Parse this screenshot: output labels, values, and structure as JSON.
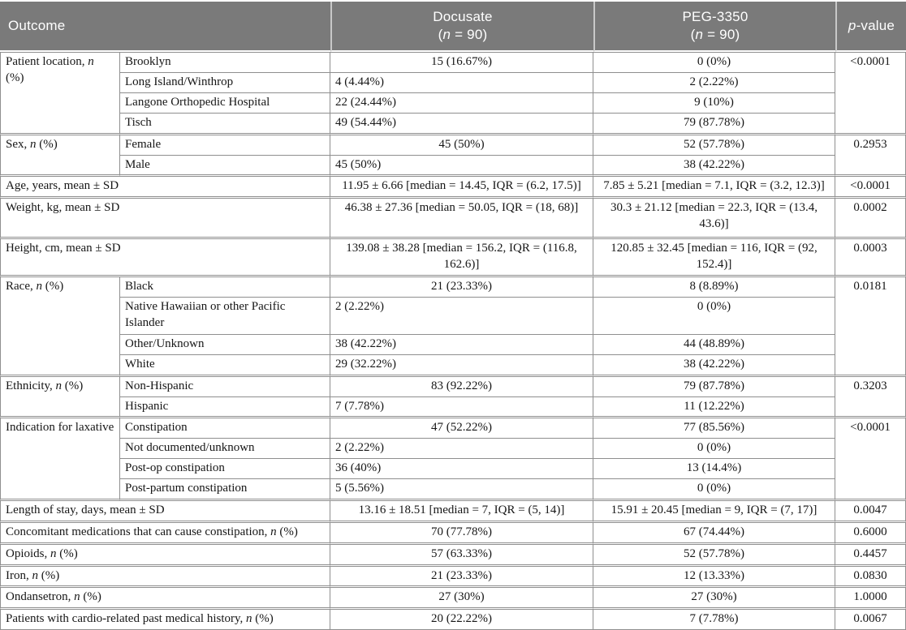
{
  "colors": {
    "header_bg": "#7a7a7a",
    "header_text": "#ffffff",
    "border": "#8f8f8f",
    "header_separator": "#c8c8c8",
    "body_text": "#161616"
  },
  "header": {
    "outcome": "Outcome",
    "docusate_line1": "Docusate",
    "docusate_line2": "(n = 90)",
    "peg_line1": "PEG-3350",
    "peg_line2": "(n = 90)",
    "pvalue": "p-value"
  },
  "groups": [
    {
      "label": "Patient location, n (%)",
      "pvalue": "<0.0001",
      "rows": [
        {
          "sub": "Brooklyn",
          "doc": "15 (16.67%)",
          "peg": "0 (0%)"
        },
        {
          "sub": "Long Island/Winthrop",
          "doc": "4 (4.44%)",
          "peg": "2 (2.22%)"
        },
        {
          "sub": "Langone Orthopedic Hospital",
          "doc": "22 (24.44%)",
          "peg": "9 (10%)"
        },
        {
          "sub": "Tisch",
          "doc": "49 (54.44%)",
          "peg": "79 (87.78%)"
        }
      ]
    },
    {
      "label": "Sex, n (%)",
      "pvalue": "0.2953",
      "rows": [
        {
          "sub": "Female",
          "doc": "45 (50%)",
          "peg": "52 (57.78%)"
        },
        {
          "sub": "Male",
          "doc": "45 (50%)",
          "peg": "38 (42.22%)"
        }
      ]
    },
    {
      "label": "Age, years, mean ± SD",
      "pvalue": "<0.0001",
      "doc": "11.95 ± 6.66 [median = 14.45, IQR = (6.2, 17.5)]",
      "peg": "7.85 ± 5.21 [median = 7.1, IQR = (3.2, 12.3)]"
    },
    {
      "label": "Weight, kg, mean ± SD",
      "pvalue": "0.0002",
      "doc": "46.38 ± 27.36 [median = 50.05, IQR = (18, 68)]",
      "peg": "30.3 ± 21.12 [median = 22.3, IQR = (13.4, 43.6)]"
    },
    {
      "label": "Height, cm, mean ± SD",
      "pvalue": "0.0003",
      "doc": "139.08 ± 38.28 [median = 156.2, IQR = (116.8, 162.6)]",
      "peg": "120.85 ± 32.45 [median = 116, IQR = (92, 152.4)]"
    },
    {
      "label": "Race, n (%)",
      "pvalue": "0.0181",
      "rows": [
        {
          "sub": "Black",
          "doc": "21 (23.33%)",
          "peg": "8 (8.89%)"
        },
        {
          "sub": "Native Hawaiian or other Pacific Islander",
          "doc": "2 (2.22%)",
          "peg": "0 (0%)"
        },
        {
          "sub": "Other/Unknown",
          "doc": "38 (42.22%)",
          "peg": "44 (48.89%)"
        },
        {
          "sub": "White",
          "doc": "29 (32.22%)",
          "peg": "38 (42.22%)"
        }
      ]
    },
    {
      "label": "Ethnicity, n (%)",
      "pvalue": "0.3203",
      "rows": [
        {
          "sub": "Non-Hispanic",
          "doc": "83 (92.22%)",
          "peg": "79 (87.78%)"
        },
        {
          "sub": "Hispanic",
          "doc": "7 (7.78%)",
          "peg": "11 (12.22%)"
        }
      ]
    },
    {
      "label": "Indication for laxative",
      "pvalue": "<0.0001",
      "rows": [
        {
          "sub": "Constipation",
          "doc": "47 (52.22%)",
          "peg": "77 (85.56%)"
        },
        {
          "sub": "Not documented/unknown",
          "doc": "2 (2.22%)",
          "peg": "0 (0%)"
        },
        {
          "sub": "Post-op constipation",
          "doc": "36 (40%)",
          "peg": "13 (14.4%)"
        },
        {
          "sub": "Post-partum constipation",
          "doc": "5 (5.56%)",
          "peg": "0 (0%)"
        }
      ]
    },
    {
      "label": "Length of stay, days, mean ± SD",
      "pvalue": "0.0047",
      "doc": "13.16 ± 18.51 [median = 7, IQR = (5, 14)]",
      "peg": "15.91 ± 20.45 [median = 9, IQR = (7, 17)]"
    },
    {
      "label": "Concomitant medications that can cause constipation, n (%)",
      "pvalue": "0.6000",
      "doc": "70 (77.78%)",
      "peg": "67 (74.44%)"
    },
    {
      "label": "Opioids, n (%)",
      "pvalue": "0.4457",
      "doc": "57 (63.33%)",
      "peg": "52 (57.78%)"
    },
    {
      "label": "Iron, n (%)",
      "pvalue": "0.0830",
      "doc": "21 (23.33%)",
      "peg": "12 (13.33%)"
    },
    {
      "label": "Ondansetron, n (%)",
      "pvalue": "1.0000",
      "doc": "27 (30%)",
      "peg": "27 (30%)"
    },
    {
      "label": "Patients with cardio-related past medical history, n (%)",
      "pvalue": "0.0067",
      "doc": "20 (22.22%)",
      "peg": "7 (7.78%)"
    }
  ]
}
